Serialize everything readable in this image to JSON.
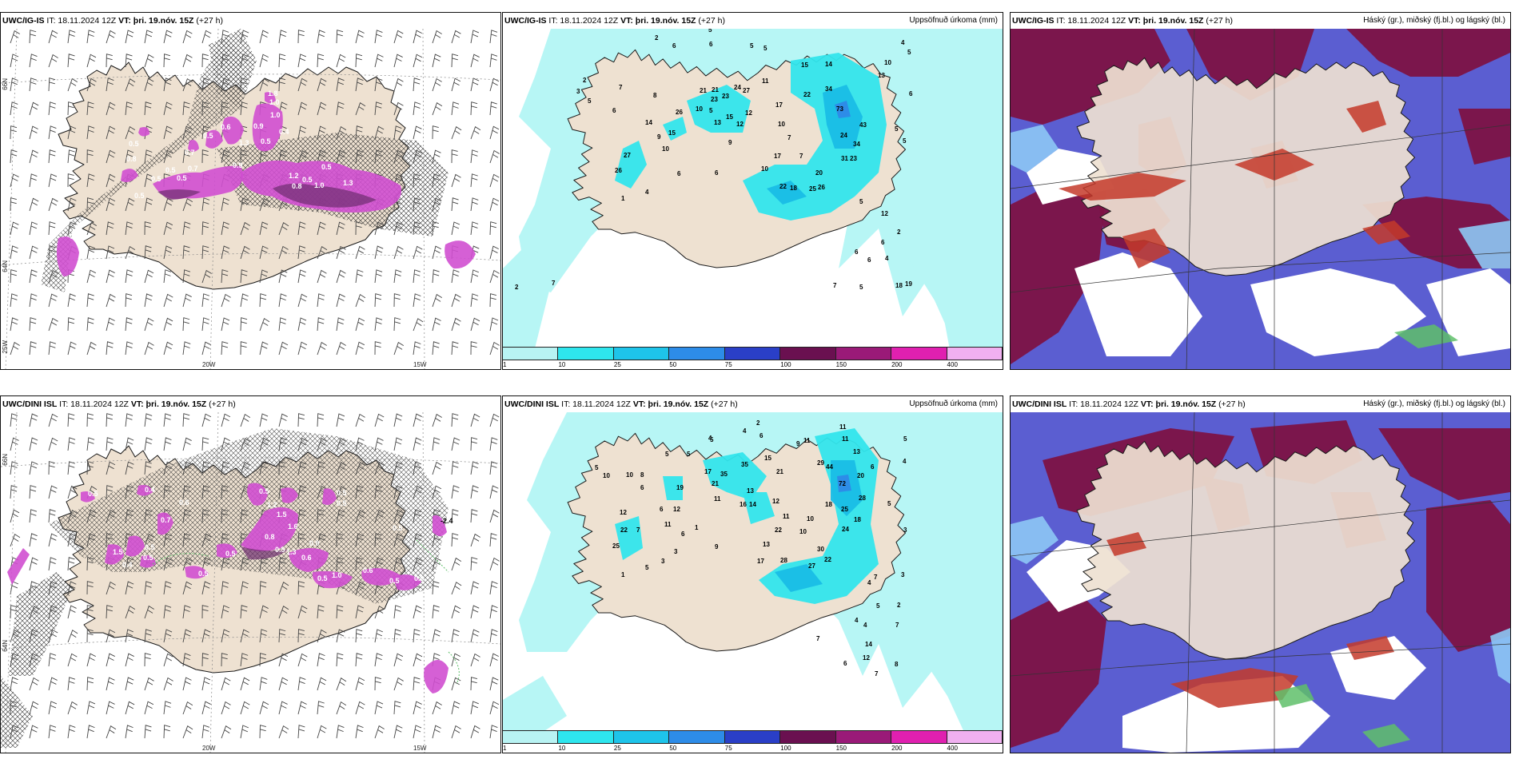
{
  "colors": {
    "land": "#eee1d1",
    "coast": "#1a1a1a",
    "ice_light": "#b7f6f5",
    "ice_mid": "#32e5ec",
    "ice_blue": "#19bde6",
    "magenta": "#d04fd0",
    "dark_magenta": "#6d2d6f",
    "maroon": "#7d1244",
    "mid_blue": "#5b5ed1",
    "light_blue": "#8dc8f5",
    "red": "#c43a2a",
    "green": "#5fc06a"
  },
  "panels": {
    "p1": {
      "model": "UWC/IG-IS",
      "it": "IT: 18.11.2024 12Z",
      "vt": "VT: þri. 19.nóv. 15Z",
      "lead": "(+27 h)",
      "right_label": ""
    },
    "p2": {
      "model": "UWC/IG-IS",
      "it": "IT: 18.11.2024 12Z",
      "vt": "VT: þri. 19.nóv. 15Z",
      "lead": "(+27 h)",
      "right_label": "Uppsöfnuð úrkoma (mm)"
    },
    "p3": {
      "model": "UWC/IG-IS",
      "it": "IT: 18.11.2024 12Z",
      "vt": "VT: þri. 19.nóv. 15Z",
      "lead": "(+27 h)",
      "right_label": "Háský (gr.), miðský (fj.bl.) og lágský (bl.)"
    },
    "p4": {
      "model": "UWC/DINI ISL",
      "it": "IT: 18.11.2024 12Z",
      "vt": "VT: þri. 19.nóv. 15Z",
      "lead": "(+27 h)",
      "right_label": ""
    },
    "p5": {
      "model": "UWC/DINI ISL",
      "it": "IT: 18.11.2024 12Z",
      "vt": "VT: þri. 19.nóv. 15Z",
      "lead": "(+27 h)",
      "right_label": "Uppsöfnuð úrkoma (mm)"
    },
    "p6": {
      "model": "UWC/DINI ISL",
      "it": "IT: 18.11.2024 12Z",
      "vt": "VT: þri. 19.nóv. 15Z",
      "lead": "(+27 h)",
      "right_label": "Háský (gr.), miðský (fj.bl.) og lágský (bl.)"
    }
  },
  "axis_labels": {
    "lat66": "66N",
    "lat64": "64N",
    "lon20": "20W",
    "lon15": "15W",
    "lon25": "25W"
  },
  "colorbar": {
    "labels": [
      "1",
      "10",
      "25",
      "50",
      "75",
      "100",
      "150",
      "200",
      "400"
    ],
    "colors": [
      "#b8f3f3",
      "#2ee6ee",
      "#1ec4ea",
      "#2d8ce8",
      "#2a3fc7",
      "#6a1050",
      "#9a1a78",
      "#e020b0",
      "#f0b0f0"
    ]
  },
  "precip_numbers_top": [
    {
      "v": "2",
      "x": 190,
      "y": 14
    },
    {
      "v": "6",
      "x": 212,
      "y": 24
    },
    {
      "v": "5",
      "x": 257,
      "y": 4
    },
    {
      "v": "6",
      "x": 258,
      "y": 22
    },
    {
      "v": "5",
      "x": 309,
      "y": 24
    },
    {
      "v": "5",
      "x": 326,
      "y": 27
    },
    {
      "v": "4",
      "x": 498,
      "y": 20
    },
    {
      "v": "5",
      "x": 506,
      "y": 32
    },
    {
      "v": "10",
      "x": 477,
      "y": 45
    },
    {
      "v": "13",
      "x": 469,
      "y": 61
    },
    {
      "v": "6",
      "x": 508,
      "y": 84
    },
    {
      "v": "15",
      "x": 373,
      "y": 48
    },
    {
      "v": "14",
      "x": 403,
      "y": 47
    },
    {
      "v": "22",
      "x": 376,
      "y": 85
    },
    {
      "v": "34",
      "x": 403,
      "y": 78
    },
    {
      "v": "73",
      "x": 417,
      "y": 103
    },
    {
      "v": "43",
      "x": 446,
      "y": 123
    },
    {
      "v": "24",
      "x": 422,
      "y": 136
    },
    {
      "v": "34",
      "x": 438,
      "y": 147
    },
    {
      "v": "31",
      "x": 423,
      "y": 165
    },
    {
      "v": "23",
      "x": 434,
      "y": 165
    },
    {
      "v": "5",
      "x": 490,
      "y": 128
    },
    {
      "v": "5",
      "x": 500,
      "y": 143
    },
    {
      "v": "17",
      "x": 341,
      "y": 98
    },
    {
      "v": "10",
      "x": 344,
      "y": 122
    },
    {
      "v": "7",
      "x": 356,
      "y": 139
    },
    {
      "v": "7",
      "x": 371,
      "y": 162
    },
    {
      "v": "20",
      "x": 391,
      "y": 183
    },
    {
      "v": "22",
      "x": 346,
      "y": 200
    },
    {
      "v": "18",
      "x": 359,
      "y": 202
    },
    {
      "v": "25",
      "x": 383,
      "y": 203
    },
    {
      "v": "26",
      "x": 394,
      "y": 201
    },
    {
      "v": "17",
      "x": 339,
      "y": 162
    },
    {
      "v": "10",
      "x": 323,
      "y": 178
    },
    {
      "v": "11",
      "x": 324,
      "y": 68
    },
    {
      "v": "24",
      "x": 289,
      "y": 76
    },
    {
      "v": "27",
      "x": 300,
      "y": 80
    },
    {
      "v": "21",
      "x": 246,
      "y": 80
    },
    {
      "v": "21",
      "x": 261,
      "y": 79
    },
    {
      "v": "23",
      "x": 274,
      "y": 87
    },
    {
      "v": "23",
      "x": 260,
      "y": 91
    },
    {
      "v": "12",
      "x": 303,
      "y": 108
    },
    {
      "v": "15",
      "x": 279,
      "y": 113
    },
    {
      "v": "13",
      "x": 264,
      "y": 120
    },
    {
      "v": "12",
      "x": 292,
      "y": 122
    },
    {
      "v": "5",
      "x": 258,
      "y": 105
    },
    {
      "v": "10",
      "x": 241,
      "y": 103
    },
    {
      "v": "26",
      "x": 216,
      "y": 107
    },
    {
      "v": "8",
      "x": 188,
      "y": 86
    },
    {
      "v": "7",
      "x": 145,
      "y": 76
    },
    {
      "v": "6",
      "x": 137,
      "y": 105
    },
    {
      "v": "14",
      "x": 178,
      "y": 120
    },
    {
      "v": "15",
      "x": 207,
      "y": 133
    },
    {
      "v": "9",
      "x": 193,
      "y": 138
    },
    {
      "v": "10",
      "x": 199,
      "y": 153
    },
    {
      "v": "9",
      "x": 282,
      "y": 145
    },
    {
      "v": "27",
      "x": 151,
      "y": 161
    },
    {
      "v": "26",
      "x": 140,
      "y": 180
    },
    {
      "v": "6",
      "x": 265,
      "y": 183
    },
    {
      "v": "6",
      "x": 218,
      "y": 184
    },
    {
      "v": "4",
      "x": 178,
      "y": 207
    },
    {
      "v": "1",
      "x": 148,
      "y": 215
    },
    {
      "v": "5",
      "x": 446,
      "y": 219
    },
    {
      "v": "12",
      "x": 473,
      "y": 234
    },
    {
      "v": "2",
      "x": 493,
      "y": 257
    },
    {
      "v": "6",
      "x": 473,
      "y": 270
    },
    {
      "v": "6",
      "x": 440,
      "y": 282
    },
    {
      "v": "6",
      "x": 456,
      "y": 292
    },
    {
      "v": "4",
      "x": 478,
      "y": 290
    },
    {
      "v": "18",
      "x": 491,
      "y": 324
    },
    {
      "v": "19",
      "x": 503,
      "y": 322
    },
    {
      "v": "5",
      "x": 446,
      "y": 326
    },
    {
      "v": "7",
      "x": 413,
      "y": 324
    },
    {
      "v": "7",
      "x": 61,
      "y": 321
    },
    {
      "v": "2",
      "x": 15,
      "y": 326
    },
    {
      "v": "3",
      "x": 92,
      "y": 81
    },
    {
      "v": "2",
      "x": 100,
      "y": 67
    },
    {
      "v": "5",
      "x": 106,
      "y": 93
    }
  ],
  "precip_numbers_bottom": [
    {
      "v": "2",
      "x": 317,
      "y": 16
    },
    {
      "v": "4",
      "x": 300,
      "y": 26
    },
    {
      "v": "4",
      "x": 257,
      "y": 35
    },
    {
      "v": "6",
      "x": 321,
      "y": 32
    },
    {
      "v": "9",
      "x": 367,
      "y": 42
    },
    {
      "v": "11",
      "x": 376,
      "y": 38
    },
    {
      "v": "11",
      "x": 421,
      "y": 21
    },
    {
      "v": "11",
      "x": 424,
      "y": 36
    },
    {
      "v": "13",
      "x": 438,
      "y": 52
    },
    {
      "v": "5",
      "x": 501,
      "y": 36
    },
    {
      "v": "4",
      "x": 500,
      "y": 64
    },
    {
      "v": "6",
      "x": 460,
      "y": 71
    },
    {
      "v": "29",
      "x": 393,
      "y": 66
    },
    {
      "v": "44",
      "x": 404,
      "y": 71
    },
    {
      "v": "20",
      "x": 443,
      "y": 82
    },
    {
      "v": "72",
      "x": 420,
      "y": 92
    },
    {
      "v": "5",
      "x": 481,
      "y": 117
    },
    {
      "v": "28",
      "x": 445,
      "y": 110
    },
    {
      "v": "18",
      "x": 403,
      "y": 118
    },
    {
      "v": "25",
      "x": 423,
      "y": 124
    },
    {
      "v": "18",
      "x": 439,
      "y": 137
    },
    {
      "v": "24",
      "x": 424,
      "y": 149
    },
    {
      "v": "3",
      "x": 501,
      "y": 150
    },
    {
      "v": "15",
      "x": 327,
      "y": 60
    },
    {
      "v": "21",
      "x": 342,
      "y": 77
    },
    {
      "v": "35",
      "x": 298,
      "y": 68
    },
    {
      "v": "35",
      "x": 272,
      "y": 80
    },
    {
      "v": "17",
      "x": 252,
      "y": 77
    },
    {
      "v": "21",
      "x": 261,
      "y": 92
    },
    {
      "v": "13",
      "x": 305,
      "y": 101
    },
    {
      "v": "12",
      "x": 337,
      "y": 114
    },
    {
      "v": "16",
      "x": 296,
      "y": 118
    },
    {
      "v": "14",
      "x": 308,
      "y": 118
    },
    {
      "v": "11",
      "x": 264,
      "y": 111
    },
    {
      "v": "11",
      "x": 350,
      "y": 133
    },
    {
      "v": "10",
      "x": 380,
      "y": 136
    },
    {
      "v": "10",
      "x": 371,
      "y": 152
    },
    {
      "v": "22",
      "x": 340,
      "y": 150
    },
    {
      "v": "13",
      "x": 325,
      "y": 168
    },
    {
      "v": "30",
      "x": 393,
      "y": 174
    },
    {
      "v": "17",
      "x": 318,
      "y": 189
    },
    {
      "v": "28",
      "x": 347,
      "y": 188
    },
    {
      "v": "22",
      "x": 402,
      "y": 187
    },
    {
      "v": "27",
      "x": 382,
      "y": 195
    },
    {
      "v": "5",
      "x": 259,
      "y": 37
    },
    {
      "v": "9",
      "x": 265,
      "y": 171
    },
    {
      "v": "1",
      "x": 240,
      "y": 147
    },
    {
      "v": "3",
      "x": 214,
      "y": 177
    },
    {
      "v": "3",
      "x": 198,
      "y": 189
    },
    {
      "v": "5",
      "x": 178,
      "y": 197
    },
    {
      "v": "5",
      "x": 230,
      "y": 55
    },
    {
      "v": "5",
      "x": 203,
      "y": 55
    },
    {
      "v": "19",
      "x": 217,
      "y": 97
    },
    {
      "v": "12",
      "x": 213,
      "y": 124
    },
    {
      "v": "6",
      "x": 196,
      "y": 124
    },
    {
      "v": "11",
      "x": 202,
      "y": 143
    },
    {
      "v": "6",
      "x": 223,
      "y": 155
    },
    {
      "v": "10",
      "x": 154,
      "y": 81
    },
    {
      "v": "8",
      "x": 172,
      "y": 81
    },
    {
      "v": "6",
      "x": 172,
      "y": 97
    },
    {
      "v": "12",
      "x": 146,
      "y": 128
    },
    {
      "v": "22",
      "x": 147,
      "y": 150
    },
    {
      "v": "7",
      "x": 167,
      "y": 150
    },
    {
      "v": "25",
      "x": 137,
      "y": 170
    },
    {
      "v": "1",
      "x": 148,
      "y": 206
    },
    {
      "v": "5",
      "x": 115,
      "y": 72
    },
    {
      "v": "10",
      "x": 125,
      "y": 82
    },
    {
      "v": "3",
      "x": 498,
      "y": 206
    },
    {
      "v": "4",
      "x": 456,
      "y": 216
    },
    {
      "v": "5",
      "x": 467,
      "y": 245
    },
    {
      "v": "2",
      "x": 493,
      "y": 244
    },
    {
      "v": "4",
      "x": 440,
      "y": 263
    },
    {
      "v": "4",
      "x": 451,
      "y": 269
    },
    {
      "v": "7",
      "x": 491,
      "y": 269
    },
    {
      "v": "14",
      "x": 453,
      "y": 293
    },
    {
      "v": "7",
      "x": 392,
      "y": 286
    },
    {
      "v": "12",
      "x": 450,
      "y": 310
    },
    {
      "v": "8",
      "x": 490,
      "y": 318
    },
    {
      "v": "6",
      "x": 426,
      "y": 317
    },
    {
      "v": "7",
      "x": 465,
      "y": 330
    },
    {
      "v": "7",
      "x": 464,
      "y": 209
    }
  ],
  "wind_labels_p1": [
    {
      "v": "0.5",
      "x": 86,
      "y": 263
    },
    {
      "v": "0.5",
      "x": 206,
      "y": 180
    },
    {
      "v": "0.7",
      "x": 234,
      "y": 178
    },
    {
      "v": "0.9",
      "x": 290,
      "y": 174
    },
    {
      "v": "1.2",
      "x": 360,
      "y": 187
    },
    {
      "v": "1.0",
      "x": 392,
      "y": 199
    },
    {
      "v": "1.3",
      "x": 428,
      "y": 196
    },
    {
      "v": "0.5",
      "x": 377,
      "y": 192
    },
    {
      "v": "0.4",
      "x": 348,
      "y": 132
    },
    {
      "v": "1.0",
      "x": 337,
      "y": 111
    },
    {
      "v": "0.9",
      "x": 316,
      "y": 125
    },
    {
      "v": "1.0",
      "x": 336,
      "y": 95
    },
    {
      "v": "0.5",
      "x": 325,
      "y": 144
    },
    {
      "v": "1.3",
      "x": 298,
      "y": 146
    },
    {
      "v": "0.6",
      "x": 275,
      "y": 126
    },
    {
      "v": "0.5",
      "x": 253,
      "y": 137
    },
    {
      "v": "0.7",
      "x": 230,
      "y": 158
    },
    {
      "v": "0.5",
      "x": 188,
      "y": 191
    },
    {
      "v": "0.5",
      "x": 167,
      "y": 212
    },
    {
      "v": "0.5",
      "x": 220,
      "y": 190
    },
    {
      "v": "0.8",
      "x": 364,
      "y": 200
    },
    {
      "v": "0.5",
      "x": 401,
      "y": 176
    },
    {
      "v": "0.8",
      "x": 157,
      "y": 166
    },
    {
      "v": "0.5",
      "x": 160,
      "y": 147
    },
    {
      "v": "1.8",
      "x": 334,
      "y": 84
    }
  ],
  "wind_labels_p4": [
    {
      "v": "0.4",
      "x": 180,
      "y": 100
    },
    {
      "v": "0.5",
      "x": 109,
      "y": 105
    },
    {
      "v": "0.5",
      "x": 420,
      "y": 104
    },
    {
      "v": "0.5",
      "x": 420,
      "y": 117
    },
    {
      "v": "0.5",
      "x": 490,
      "y": 148
    },
    {
      "v": "-2.4",
      "x": 550,
      "y": 139
    },
    {
      "v": "1.2",
      "x": 333,
      "y": 119
    },
    {
      "v": "0.5",
      "x": 323,
      "y": 102
    },
    {
      "v": "1.5",
      "x": 345,
      "y": 131
    },
    {
      "v": "0.6",
      "x": 223,
      "y": 116
    },
    {
      "v": "0.7",
      "x": 200,
      "y": 138
    },
    {
      "v": "0.5",
      "x": 180,
      "y": 172
    },
    {
      "v": "0.5",
      "x": 178,
      "y": 185
    },
    {
      "v": "1.5",
      "x": 140,
      "y": 178
    },
    {
      "v": "0.4",
      "x": 152,
      "y": 194
    },
    {
      "v": "0.8",
      "x": 330,
      "y": 159
    },
    {
      "v": "0.5",
      "x": 343,
      "y": 175
    },
    {
      "v": "0.5",
      "x": 281,
      "y": 180
    },
    {
      "v": "0.9",
      "x": 386,
      "y": 167
    },
    {
      "v": "0.6",
      "x": 376,
      "y": 185
    },
    {
      "v": "1.0",
      "x": 414,
      "y": 207
    },
    {
      "v": "0.5",
      "x": 396,
      "y": 211
    },
    {
      "v": "0.6",
      "x": 453,
      "y": 201
    },
    {
      "v": "0.9",
      "x": 517,
      "y": 211
    },
    {
      "v": "0.5",
      "x": 486,
      "y": 214
    },
    {
      "v": "1.6",
      "x": 359,
      "y": 146
    },
    {
      "v": "0.5",
      "x": 247,
      "y": 205
    },
    {
      "v": "1.3",
      "x": 357,
      "y": 178
    }
  ]
}
